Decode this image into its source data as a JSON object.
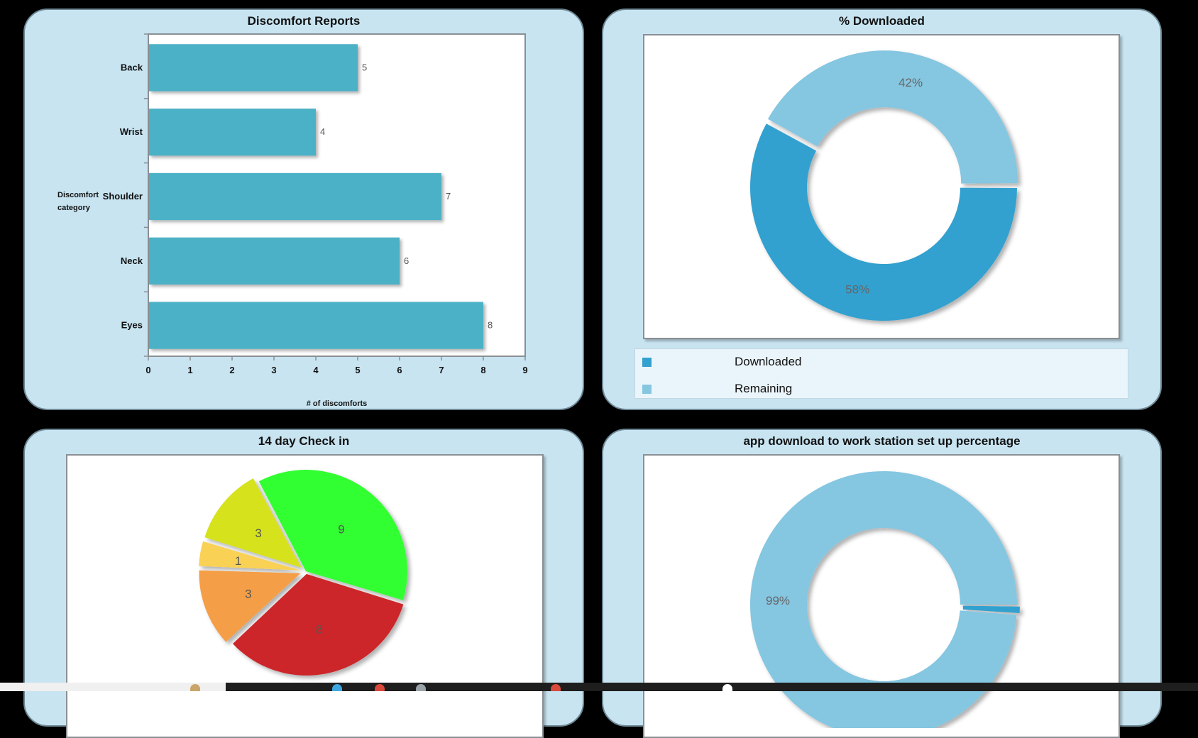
{
  "panels": {
    "discomfort": {
      "title": "Discomfort Reports"
    },
    "downloaded": {
      "title": "% Downloaded"
    },
    "checkin": {
      "title": "14 day Check in"
    },
    "setup": {
      "title": "app download to work station set up percentage"
    }
  },
  "colors": {
    "bar": "#4bb1c6",
    "downloaded": "#33a1cf",
    "remaining": "#85c6e1",
    "pie_green": "#33ff33",
    "pie_yellowgreen": "#d5e21d",
    "pie_yellow": "#f8d155",
    "pie_orange": "#f49e46",
    "pie_red": "#cc272b"
  },
  "chart_data": [
    {
      "type": "bar",
      "orientation": "horizontal",
      "title": "Discomfort Reports",
      "xlabel": "# of discomforts",
      "ylabel": "Discomfort category",
      "categories": [
        "Back",
        "Wrist",
        "Shoulder",
        "Neck",
        "Eyes"
      ],
      "values": [
        5,
        4,
        7,
        6,
        8
      ],
      "xlim": [
        0,
        9
      ],
      "xticks": [
        "0",
        "1",
        "2",
        "3",
        "4",
        "5",
        "6",
        "7",
        "8",
        "9"
      ],
      "data_labels": [
        "5",
        "4",
        "7",
        "6",
        "8"
      ],
      "grid": false
    },
    {
      "type": "pie",
      "variant": "donut",
      "title": "% Downloaded",
      "labels": [
        "Downloaded",
        "Remaining"
      ],
      "values": [
        58,
        42
      ],
      "data_labels": [
        "58%",
        "42%"
      ],
      "legend": "bottom"
    },
    {
      "type": "pie",
      "title": "14 day Check in",
      "values": [
        9,
        8,
        3,
        1,
        3
      ],
      "data_labels": [
        "9",
        "8",
        "3",
        "1",
        "3"
      ]
    },
    {
      "type": "pie",
      "variant": "donut",
      "title": "app download to work station set up percentage",
      "values": [
        99,
        1
      ],
      "data_labels": [
        "99%"
      ]
    }
  ]
}
